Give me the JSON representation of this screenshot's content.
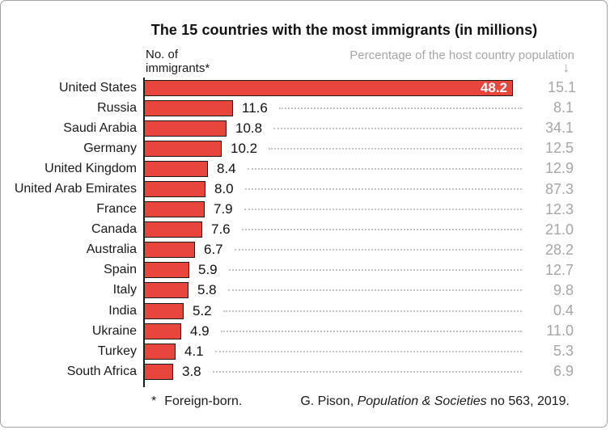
{
  "title": "The 15 countries with the most immigrants (in millions)",
  "left_axis_note": {
    "line1": "No. of",
    "line2": "immigrants*"
  },
  "right_header": "Percentage of the host country population",
  "arrow_icon": "↓",
  "footnote": {
    "marker": "*",
    "text": "Foreign-born."
  },
  "source": {
    "prefix": "G. Pison, ",
    "italic": "Population & Societies",
    "suffix": " no 563, 2019."
  },
  "colors": {
    "bar_fill": "#e8463d",
    "bar_border": "#1c1c1c",
    "gray_text": "#a6a6a6",
    "leader_dots": "#c4c4c4",
    "text": "#1a1a1a"
  },
  "chart_data": {
    "type": "bar",
    "orientation": "horizontal",
    "title": "The 15 countries with the most immigrants (in millions)",
    "categories": [
      "United States",
      "Russia",
      "Saudi Arabia",
      "Germany",
      "United Kingdom",
      "United Arab Emirates",
      "France",
      "Canada",
      "Australia",
      "Spain",
      "Italy",
      "India",
      "Ukraine",
      "Turkey",
      "South Africa"
    ],
    "series": [
      {
        "name": "No. of immigrants (millions)",
        "values": [
          48.2,
          11.6,
          10.8,
          10.2,
          8.4,
          8.0,
          7.9,
          7.6,
          6.7,
          5.9,
          5.8,
          5.2,
          4.9,
          4.1,
          3.8
        ]
      },
      {
        "name": "Percentage of the host country population",
        "values": [
          15.1,
          8.1,
          34.1,
          12.5,
          12.9,
          87.3,
          12.3,
          21.0,
          28.2,
          12.7,
          9.8,
          0.4,
          11.0,
          5.3,
          6.9
        ]
      }
    ],
    "xlim": [
      0,
      48.2
    ],
    "grid": false,
    "legend": false,
    "value_labels": "end-of-bar, first bar labeled inside in white"
  }
}
